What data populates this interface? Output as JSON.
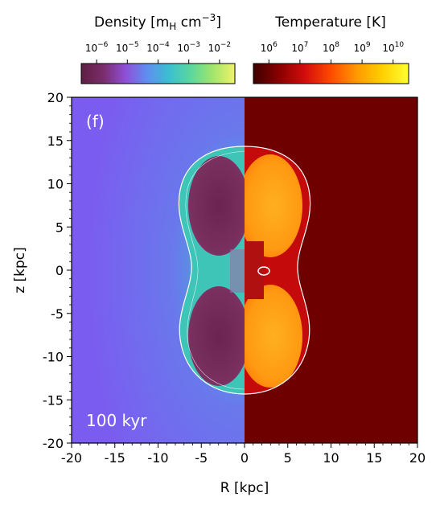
{
  "panel_label": "(f)",
  "time_label": "100 kyr",
  "axes": {
    "xlabel": "R [kpc]",
    "ylabel": "z [kpc]",
    "xlim": [
      -20,
      20
    ],
    "ylim": [
      -20,
      20
    ],
    "x_ticks": [
      "-20",
      "-15",
      "-10",
      "-5",
      "0",
      "5",
      "10",
      "15",
      "20"
    ],
    "y_ticks": [
      "20",
      "15",
      "10",
      "5",
      "0",
      "-5",
      "-10",
      "-15",
      "-20"
    ]
  },
  "colorbars": {
    "density": {
      "title_main": "Density [m",
      "title_sub": "H",
      "title_mid": " cm",
      "title_sup": "−3",
      "title_end": "]",
      "ticks": [
        {
          "base": "10",
          "exp": "−6"
        },
        {
          "base": "10",
          "exp": "−5"
        },
        {
          "base": "10",
          "exp": "−4"
        },
        {
          "base": "10",
          "exp": "−3"
        },
        {
          "base": "10",
          "exp": "−2"
        }
      ],
      "colors": [
        "#5e1f43",
        "#7a2c6b",
        "#8f4fd6",
        "#5e8ff0",
        "#3bbfd0",
        "#5cd79d",
        "#a2e56b",
        "#f0f26a"
      ]
    },
    "temperature": {
      "title": "Temperature [K]",
      "ticks": [
        {
          "base": "10",
          "exp": "6"
        },
        {
          "base": "10",
          "exp": "7"
        },
        {
          "base": "10",
          "exp": "8"
        },
        {
          "base": "10",
          "exp": "9"
        },
        {
          "base": "10",
          "exp": "10"
        }
      ],
      "colors": [
        "#3d0000",
        "#8a0000",
        "#d40c0c",
        "#ff4a00",
        "#ff9a00",
        "#ffd000",
        "#ffff33"
      ]
    }
  },
  "colors": {
    "ambient_density": "#7b5cf0",
    "ambient_temperature": "#6f0000",
    "bubble_density": "#6d2950",
    "bubble_temperature": "#ffa21a",
    "shell_density": "#42c2bf",
    "shock": "#ffffff"
  }
}
